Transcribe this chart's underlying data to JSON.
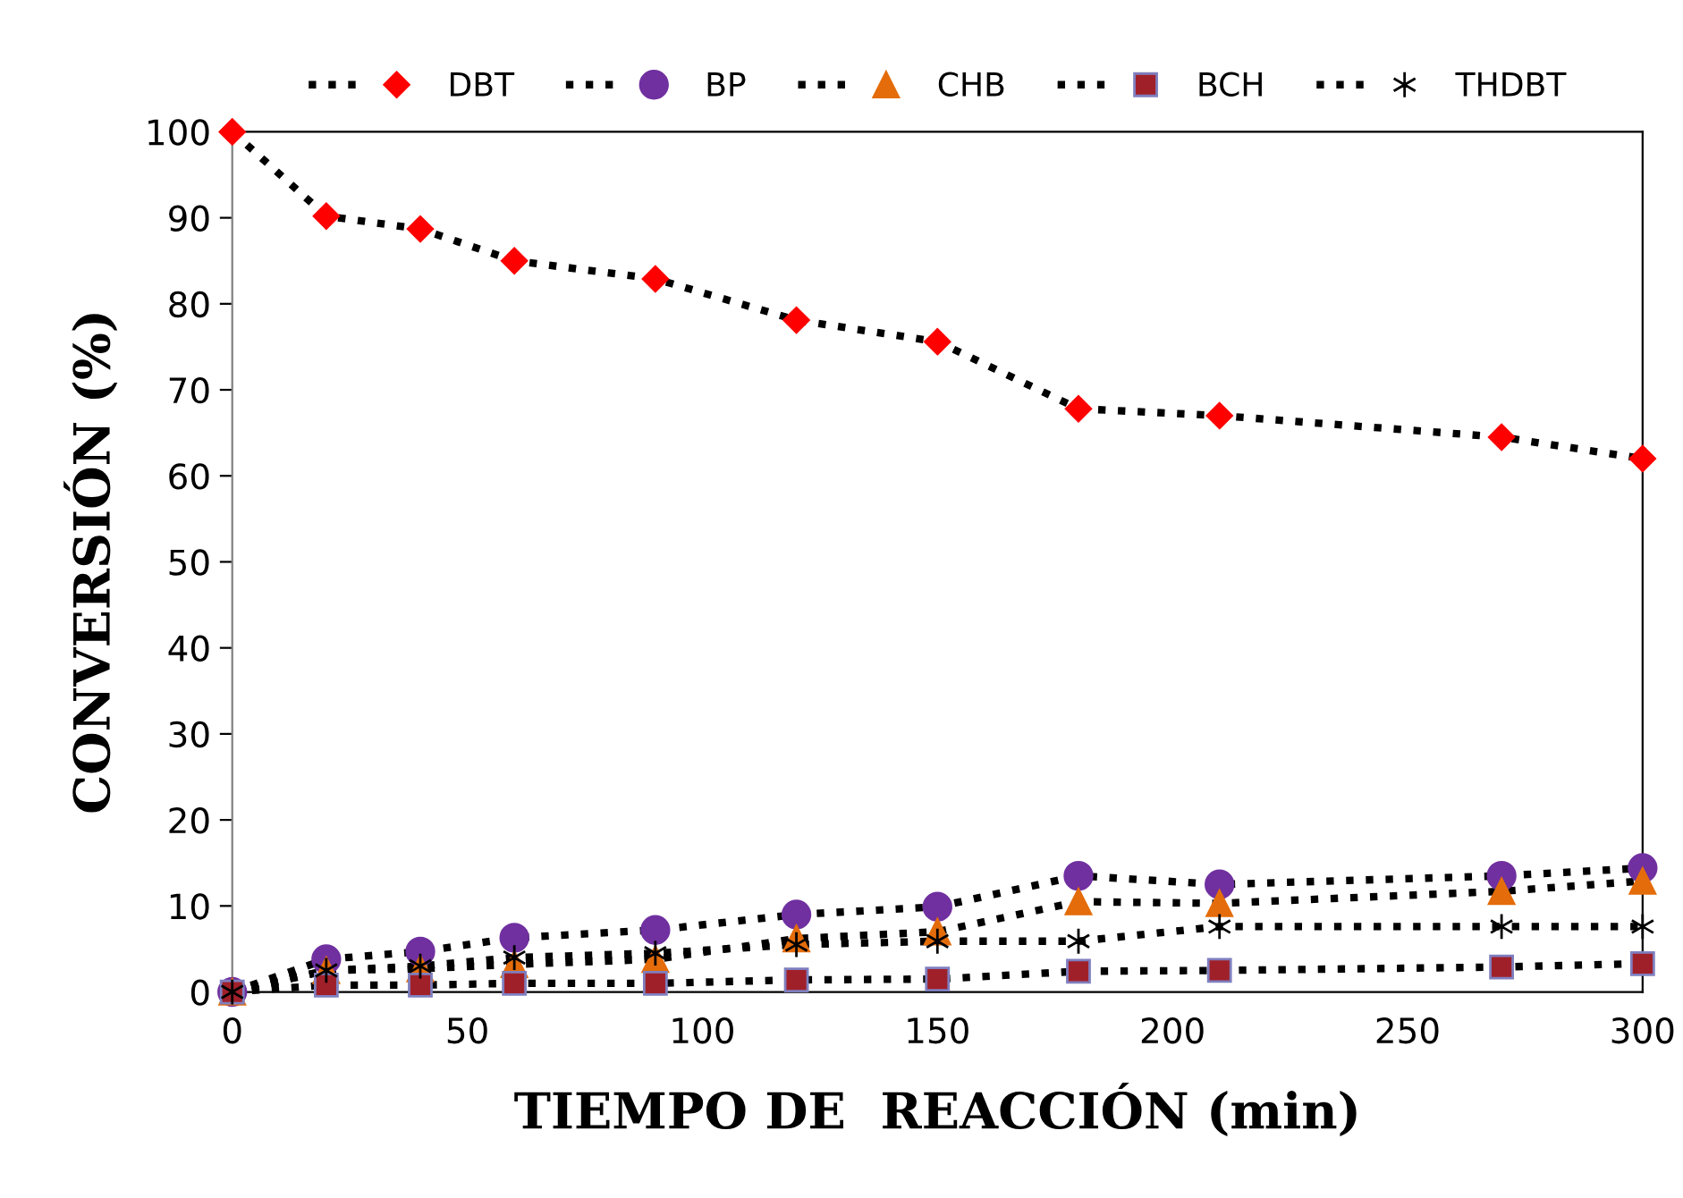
{
  "chart_data": {
    "type": "line",
    "xlabel": "TIEMPO DE  REACCIÓN (min)",
    "ylabel": "CONVERSIÓN (%)",
    "x": [
      0,
      20,
      40,
      60,
      90,
      120,
      150,
      180,
      210,
      270,
      300
    ],
    "series": [
      {
        "name": "DBT",
        "color": "#ff0000",
        "marker": "diamond",
        "values": [
          100,
          90.2,
          88.7,
          85,
          82.9,
          78.1,
          75.6,
          67.8,
          67,
          64.5,
          62
        ]
      },
      {
        "name": "BP",
        "color": "#7030a0",
        "marker": "circle",
        "values": [
          0,
          3.8,
          4.7,
          6.3,
          7.2,
          9,
          9.9,
          13.5,
          12.5,
          13.5,
          14.4
        ]
      },
      {
        "name": "CHB",
        "color": "#e46c0a",
        "marker": "triangle",
        "values": [
          0,
          2.5,
          2.7,
          3.2,
          3.8,
          6.2,
          7,
          10.5,
          10.3,
          11.7,
          12.9
        ]
      },
      {
        "name": "BCH",
        "color": "#a0202a",
        "marker": "square",
        "values": [
          0,
          0.8,
          0.8,
          1,
          1,
          1.4,
          1.5,
          2.4,
          2.5,
          2.9,
          3.3
        ]
      },
      {
        "name": "THDBT",
        "color": "#000000",
        "marker": "cross",
        "values": [
          0,
          2.5,
          3,
          4,
          4.5,
          5.5,
          5.9,
          5.9,
          7.6,
          7.6,
          7.6
        ]
      }
    ],
    "xlim": [
      0,
      300
    ],
    "xticks": [
      0,
      50,
      100,
      150,
      200,
      250,
      300
    ],
    "ylim": [
      0,
      100
    ],
    "yticks": [
      0,
      10,
      20,
      30,
      40,
      50,
      60,
      70,
      80,
      90,
      100
    ],
    "grid": false,
    "legend": "top",
    "line_style": "dotted"
  }
}
